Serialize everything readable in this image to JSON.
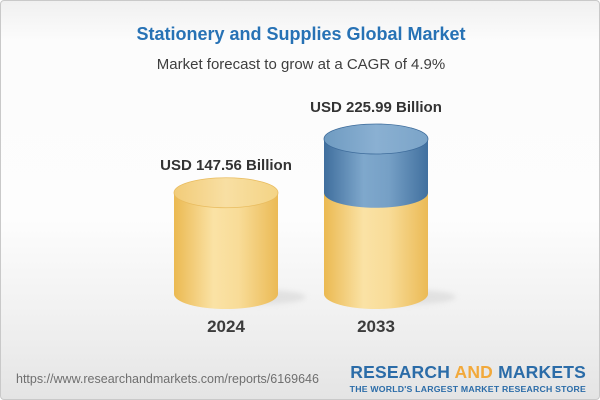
{
  "header": {
    "title": "Stationery and Supplies Global Market",
    "subtitle": "Market forecast to grow at a CAGR of 4.9%"
  },
  "chart_data": {
    "type": "bar",
    "variant": "3d-stacked-cylinder",
    "categories": [
      "2024",
      "2033"
    ],
    "values": [
      147.56,
      225.99
    ],
    "value_labels": [
      "USD 147.56 Billion",
      "USD 225.99 Billion"
    ],
    "unit": "USD Billion",
    "cagr": "4.9%",
    "ylim": [
      0,
      240
    ],
    "gridlines": false,
    "legend_position": "none",
    "colors": {
      "base_segment": "#F2C972",
      "growth_segment": "#5584AF"
    }
  },
  "footer": {
    "url": "https://www.researchandmarkets.com/reports/6169646",
    "logo": {
      "word1": "RESEARCH",
      "word2": "AND",
      "word3": "MARKETS",
      "tagline": "THE WORLD'S LARGEST MARKET RESEARCH STORE",
      "blue": "#2B6CA8",
      "gold": "#F2A93B"
    }
  },
  "colors": {
    "title_blue": "#2772B5",
    "text_dark": "#3C3C3C",
    "url_gray": "#6F6F6F"
  }
}
